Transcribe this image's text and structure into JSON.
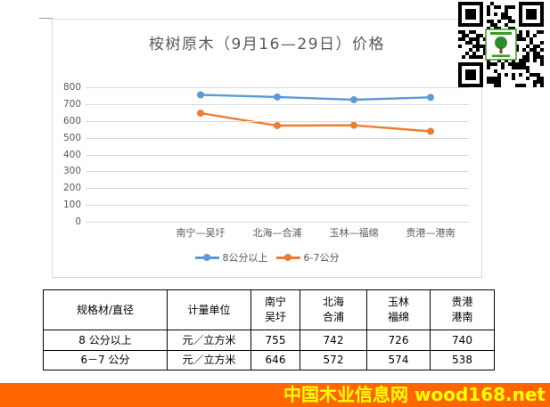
{
  "chart_data": {
    "type": "line",
    "title": "桉树原木（9月16—29日）价格",
    "categories": [
      "南宁—吴圩",
      "北海—合浦",
      "玉林—福绵",
      "贵港—港南"
    ],
    "series": [
      {
        "name": "8公分以上",
        "values": [
          755,
          742,
          726,
          740
        ],
        "color": "#5b9bd5"
      },
      {
        "name": "6-7公分",
        "values": [
          646,
          572,
          574,
          538
        ],
        "color": "#ed7d31"
      }
    ],
    "xlabel": "",
    "ylabel": "",
    "ylim": [
      0,
      800
    ],
    "y_ticks": [
      "800",
      "700",
      "600",
      "500",
      "400",
      "300",
      "200",
      "100",
      "0"
    ],
    "grid": true,
    "legend_position": "bottom"
  },
  "table": {
    "headers": [
      "规格材/直径",
      "计量单位",
      "南宁\n吴圩",
      "北海\n合浦",
      "玉林\n福绵",
      "贵港\n港南"
    ],
    "rows": [
      {
        "cells": [
          "8 公分以上",
          "元／立方米",
          "755",
          "742",
          "726",
          "740"
        ]
      },
      {
        "cells": [
          "6－7 公分",
          "元／立方米",
          "646",
          "572",
          "574",
          "538"
        ]
      }
    ]
  },
  "footer": {
    "text": "中国木业信息网 wood168.net",
    "bg_color": "#ff6600",
    "text_color": "#ffff00"
  },
  "icons": {
    "qr_code": "wechat-qr-code-with-green-tree-logo"
  },
  "colors": {
    "series_blue": "#5b9bd5",
    "series_orange": "#ed7d31",
    "gridline": "#d9d9d9",
    "axis_text": "#595959",
    "table_border": "#000000"
  }
}
